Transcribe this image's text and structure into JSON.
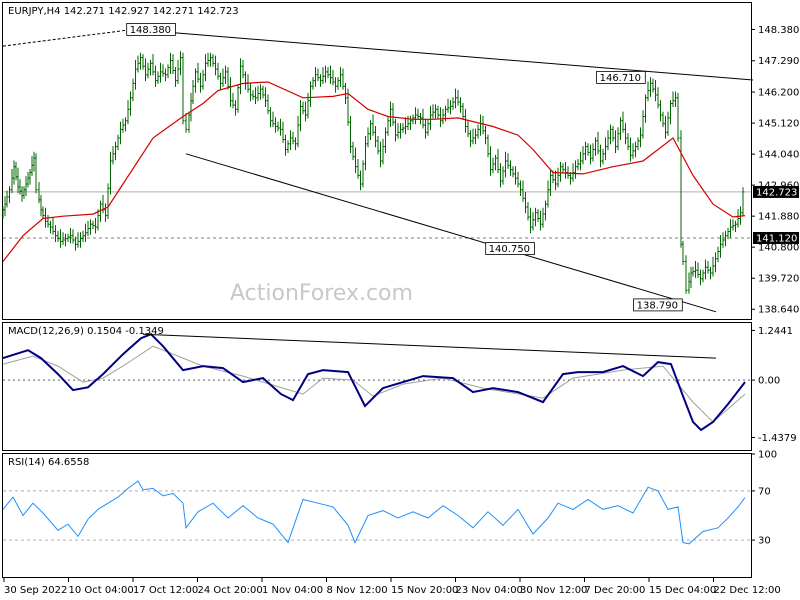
{
  "window": {
    "watermark": "ActionForex.com"
  },
  "chart_data": [
    {
      "type": "candlestick",
      "header": "EURJPY,H4  142.271 142.927 142.271 142.723",
      "symbol": "EURJPY",
      "timeframe": "H4",
      "ohlc_last": {
        "open": 142.271,
        "high": 142.927,
        "low": 142.271,
        "close": 142.723
      },
      "ylim": [
        138.3,
        149.3
      ],
      "y_ticks": [
        148.38,
        147.29,
        146.2,
        145.12,
        144.04,
        142.96,
        141.88,
        140.8,
        139.72,
        138.64
      ],
      "y_tick_labels": [
        "148.380",
        "147.290",
        "146.200",
        "145.120",
        "144.040",
        "142.960",
        "141.880",
        "140.800",
        "139.720",
        "138.640"
      ],
      "x_labels": [
        "30 Sep 2022",
        "10 Oct 04:00",
        "17 Oct 12:00",
        "24 Oct 20:00",
        "1 Nov 04:00",
        "8 Nov 12:00",
        "15 Nov 20:00",
        "23 Nov 04:00",
        "30 Nov 12:00",
        "7 Dec 20:00",
        "15 Dec 04:00",
        "22 Dec 12:00"
      ],
      "close_series": [
        [
          0,
          141.9
        ],
        [
          4,
          142.3
        ],
        [
          9,
          142.8
        ],
        [
          13,
          143.6
        ],
        [
          17,
          142.9
        ],
        [
          21,
          142.6
        ],
        [
          25,
          143.0
        ],
        [
          29,
          143.4
        ],
        [
          33,
          143.9
        ],
        [
          36,
          142.8
        ],
        [
          40,
          142.1
        ],
        [
          45,
          141.7
        ],
        [
          50,
          141.5
        ],
        [
          55,
          141.2
        ],
        [
          60,
          141.0
        ],
        [
          65,
          141.1
        ],
        [
          70,
          141.2
        ],
        [
          75,
          140.9
        ],
        [
          80,
          141.1
        ],
        [
          85,
          141.3
        ],
        [
          90,
          141.6
        ],
        [
          95,
          141.5
        ],
        [
          100,
          142.3
        ],
        [
          105,
          141.9
        ],
        [
          110,
          143.8
        ],
        [
          115,
          144.3
        ],
        [
          120,
          144.9
        ],
        [
          125,
          145.2
        ],
        [
          130,
          146.0
        ],
        [
          135,
          147.0
        ],
        [
          140,
          147.4
        ],
        [
          145,
          146.8
        ],
        [
          150,
          147.2
        ],
        [
          155,
          146.6
        ],
        [
          160,
          146.9
        ],
        [
          165,
          146.8
        ],
        [
          170,
          147.3
        ],
        [
          175,
          146.6
        ],
        [
          180,
          147.4
        ],
        [
          183,
          145.2
        ],
        [
          186,
          144.9
        ],
        [
          190,
          145.9
        ],
        [
          195,
          146.9
        ],
        [
          200,
          146.4
        ],
        [
          205,
          147.2
        ],
        [
          210,
          147.4
        ],
        [
          215,
          147.0
        ],
        [
          220,
          146.5
        ],
        [
          225,
          146.9
        ],
        [
          230,
          145.9
        ],
        [
          235,
          145.6
        ],
        [
          240,
          147.1
        ],
        [
          245,
          146.5
        ],
        [
          250,
          146.1
        ],
        [
          255,
          146.0
        ],
        [
          260,
          146.3
        ],
        [
          265,
          145.9
        ],
        [
          270,
          145.2
        ],
        [
          275,
          145.0
        ],
        [
          280,
          144.9
        ],
        [
          285,
          144.2
        ],
        [
          290,
          144.6
        ],
        [
          295,
          144.4
        ],
        [
          300,
          145.7
        ],
        [
          305,
          145.4
        ],
        [
          310,
          146.4
        ],
        [
          315,
          146.8
        ],
        [
          320,
          146.6
        ],
        [
          325,
          146.9
        ],
        [
          330,
          146.7
        ],
        [
          335,
          146.4
        ],
        [
          340,
          146.8
        ],
        [
          345,
          146.0
        ],
        [
          350,
          144.3
        ],
        [
          355,
          143.6
        ],
        [
          360,
          143.0
        ],
        [
          365,
          144.4
        ],
        [
          370,
          145.1
        ],
        [
          375,
          144.5
        ],
        [
          380,
          143.8
        ],
        [
          385,
          144.8
        ],
        [
          390,
          145.6
        ],
        [
          395,
          144.7
        ],
        [
          400,
          144.9
        ],
        [
          405,
          145.0
        ],
        [
          410,
          145.2
        ],
        [
          415,
          145.4
        ],
        [
          420,
          145.3
        ],
        [
          425,
          144.8
        ],
        [
          430,
          145.4
        ],
        [
          435,
          145.6
        ],
        [
          440,
          145.2
        ],
        [
          445,
          145.6
        ],
        [
          450,
          145.7
        ],
        [
          455,
          146.0
        ],
        [
          460,
          145.7
        ],
        [
          465,
          145.0
        ],
        [
          470,
          144.5
        ],
        [
          475,
          144.7
        ],
        [
          480,
          145.1
        ],
        [
          485,
          144.6
        ],
        [
          490,
          143.5
        ],
        [
          495,
          143.9
        ],
        [
          500,
          143.1
        ],
        [
          505,
          143.8
        ],
        [
          510,
          143.5
        ],
        [
          515,
          143.2
        ],
        [
          520,
          142.8
        ],
        [
          525,
          142.2
        ],
        [
          530,
          141.5
        ],
        [
          535,
          142.0
        ],
        [
          540,
          141.6
        ],
        [
          545,
          142.3
        ],
        [
          550,
          143.3
        ],
        [
          555,
          143.0
        ],
        [
          560,
          143.6
        ],
        [
          565,
          143.4
        ],
        [
          570,
          143.2
        ],
        [
          575,
          143.6
        ],
        [
          580,
          143.8
        ],
        [
          585,
          144.3
        ],
        [
          590,
          143.9
        ],
        [
          595,
          144.5
        ],
        [
          600,
          143.8
        ],
        [
          605,
          144.3
        ],
        [
          610,
          144.9
        ],
        [
          615,
          144.3
        ],
        [
          620,
          145.2
        ],
        [
          625,
          144.6
        ],
        [
          630,
          144.0
        ],
        [
          635,
          144.3
        ],
        [
          640,
          144.7
        ],
        [
          645,
          146.0
        ],
        [
          650,
          146.5
        ],
        [
          655,
          146.1
        ],
        [
          660,
          145.4
        ],
        [
          665,
          144.8
        ],
        [
          670,
          145.8
        ],
        [
          675,
          146.0
        ],
        [
          678,
          144.6
        ],
        [
          680,
          140.9
        ],
        [
          683,
          140.3
        ],
        [
          686,
          139.3
        ],
        [
          690,
          139.9
        ],
        [
          695,
          140.0
        ],
        [
          700,
          139.7
        ],
        [
          705,
          140.1
        ],
        [
          710,
          139.9
        ],
        [
          715,
          140.4
        ],
        [
          720,
          140.9
        ],
        [
          725,
          141.2
        ],
        [
          730,
          141.5
        ],
        [
          735,
          141.6
        ],
        [
          740,
          142.0
        ],
        [
          742,
          142.723
        ]
      ],
      "ma_series": [
        [
          0,
          140.3
        ],
        [
          20,
          141.2
        ],
        [
          40,
          141.8
        ],
        [
          60,
          141.88
        ],
        [
          90,
          141.95
        ],
        [
          105,
          142.2
        ],
        [
          120,
          143.0
        ],
        [
          150,
          144.6
        ],
        [
          180,
          145.35
        ],
        [
          200,
          145.8
        ],
        [
          215,
          146.25
        ],
        [
          240,
          146.5
        ],
        [
          265,
          146.55
        ],
        [
          300,
          146.0
        ],
        [
          330,
          146.05
        ],
        [
          345,
          146.15
        ],
        [
          365,
          145.6
        ],
        [
          385,
          145.35
        ],
        [
          410,
          145.25
        ],
        [
          430,
          145.25
        ],
        [
          455,
          145.3
        ],
        [
          490,
          145.0
        ],
        [
          515,
          144.7
        ],
        [
          530,
          144.2
        ],
        [
          550,
          143.4
        ],
        [
          580,
          143.35
        ],
        [
          610,
          143.6
        ],
        [
          640,
          143.8
        ],
        [
          670,
          144.6
        ],
        [
          690,
          143.3
        ],
        [
          710,
          142.3
        ],
        [
          730,
          141.85
        ],
        [
          742,
          141.9
        ]
      ],
      "trendlines": [
        {
          "points": [
            [
              0,
              147.8
            ],
            [
              130,
              148.38
            ],
            [
              750,
              146.62
            ]
          ],
          "dashed_until_index": 1
        },
        {
          "points": [
            [
              183,
              144.05
            ],
            [
              713,
              138.55
            ]
          ]
        }
      ],
      "horizontal_lines": [
        {
          "y": 142.723,
          "style": "solid",
          "label": "142.723"
        },
        {
          "y": 141.12,
          "style": "dashed",
          "label": "141.120"
        }
      ],
      "annotations": [
        {
          "text": "148.380",
          "x": 148,
          "y": 148.38
        },
        {
          "text": "146.710",
          "x": 618,
          "y": 146.71
        },
        {
          "text": "140.750",
          "x": 507,
          "y": 140.75
        },
        {
          "text": "138.790",
          "x": 655,
          "y": 138.79
        }
      ],
      "colors": {
        "price": "#006400",
        "ma": "#d40000",
        "trendline": "#000000",
        "price_box": "#000000"
      }
    },
    {
      "type": "line",
      "header": "MACD(12,26,9) 0.1504 -0.1349",
      "ylim": [
        -1.75,
        1.43
      ],
      "y_ticks": [
        1.2441,
        0.0,
        -1.4379
      ],
      "y_tick_labels": [
        "1.2441",
        "0.00",
        "-1.4379"
      ],
      "macd_series": [
        [
          0,
          0.55
        ],
        [
          25,
          0.75
        ],
        [
          38,
          0.55
        ],
        [
          55,
          0.15
        ],
        [
          70,
          -0.25
        ],
        [
          85,
          -0.18
        ],
        [
          100,
          0.15
        ],
        [
          120,
          0.65
        ],
        [
          138,
          1.05
        ],
        [
          148,
          1.15
        ],
        [
          160,
          0.85
        ],
        [
          180,
          0.25
        ],
        [
          200,
          0.35
        ],
        [
          220,
          0.3
        ],
        [
          240,
          -0.05
        ],
        [
          260,
          0.05
        ],
        [
          278,
          -0.35
        ],
        [
          290,
          -0.5
        ],
        [
          305,
          0.15
        ],
        [
          320,
          0.25
        ],
        [
          345,
          0.2
        ],
        [
          362,
          -0.65
        ],
        [
          380,
          -0.2
        ],
        [
          400,
          -0.05
        ],
        [
          420,
          0.1
        ],
        [
          450,
          0.05
        ],
        [
          470,
          -0.3
        ],
        [
          490,
          -0.2
        ],
        [
          515,
          -0.3
        ],
        [
          540,
          -0.55
        ],
        [
          560,
          0.15
        ],
        [
          575,
          0.2
        ],
        [
          600,
          0.2
        ],
        [
          620,
          0.35
        ],
        [
          640,
          0.1
        ],
        [
          655,
          0.45
        ],
        [
          668,
          0.4
        ],
        [
          680,
          -0.4
        ],
        [
          690,
          -1.05
        ],
        [
          698,
          -1.25
        ],
        [
          710,
          -1.05
        ],
        [
          725,
          -0.6
        ],
        [
          742,
          -0.05
        ]
      ],
      "signal_series": [
        [
          0,
          0.4
        ],
        [
          30,
          0.6
        ],
        [
          55,
          0.35
        ],
        [
          80,
          -0.05
        ],
        [
          100,
          0.05
        ],
        [
          120,
          0.35
        ],
        [
          150,
          0.85
        ],
        [
          175,
          0.6
        ],
        [
          200,
          0.35
        ],
        [
          240,
          0.1
        ],
        [
          280,
          -0.2
        ],
        [
          300,
          -0.35
        ],
        [
          320,
          0.05
        ],
        [
          350,
          0.0
        ],
        [
          370,
          -0.4
        ],
        [
          400,
          -0.1
        ],
        [
          440,
          0.05
        ],
        [
          480,
          -0.2
        ],
        [
          540,
          -0.45
        ],
        [
          570,
          0.05
        ],
        [
          620,
          0.25
        ],
        [
          660,
          0.35
        ],
        [
          690,
          -0.55
        ],
        [
          710,
          -1.05
        ],
        [
          742,
          -0.35
        ]
      ],
      "trendline": {
        "points": [
          [
            140,
            1.15
          ],
          [
            713,
            0.55
          ]
        ]
      },
      "colors": {
        "macd": "#000080",
        "signal": "#a0a0a0",
        "trendline": "#000000"
      }
    },
    {
      "type": "line",
      "header": "RSI(14) 64.6558",
      "ylim": [
        0,
        100
      ],
      "y_ticks": [
        100,
        70,
        30
      ],
      "y_tick_labels": [
        "100",
        "70",
        "30"
      ],
      "levels": [
        70,
        30
      ],
      "rsi_series": [
        [
          0,
          55
        ],
        [
          10,
          65
        ],
        [
          20,
          50
        ],
        [
          30,
          60
        ],
        [
          40,
          52
        ],
        [
          55,
          38
        ],
        [
          65,
          43
        ],
        [
          75,
          33
        ],
        [
          85,
          47
        ],
        [
          95,
          55
        ],
        [
          105,
          60
        ],
        [
          115,
          65
        ],
        [
          125,
          72
        ],
        [
          135,
          78
        ],
        [
          140,
          71
        ],
        [
          150,
          72
        ],
        [
          160,
          66
        ],
        [
          170,
          68
        ],
        [
          180,
          60
        ],
        [
          183,
          40
        ],
        [
          195,
          53
        ],
        [
          210,
          60
        ],
        [
          225,
          48
        ],
        [
          240,
          58
        ],
        [
          255,
          48
        ],
        [
          270,
          43
        ],
        [
          285,
          28
        ],
        [
          300,
          63
        ],
        [
          315,
          60
        ],
        [
          330,
          57
        ],
        [
          345,
          42
        ],
        [
          352,
          28
        ],
        [
          365,
          50
        ],
        [
          380,
          54
        ],
        [
          395,
          48
        ],
        [
          410,
          53
        ],
        [
          425,
          48
        ],
        [
          440,
          58
        ],
        [
          455,
          50
        ],
        [
          470,
          40
        ],
        [
          485,
          53
        ],
        [
          500,
          42
        ],
        [
          515,
          55
        ],
        [
          530,
          35
        ],
        [
          545,
          48
        ],
        [
          555,
          60
        ],
        [
          570,
          55
        ],
        [
          585,
          63
        ],
        [
          600,
          55
        ],
        [
          615,
          58
        ],
        [
          630,
          52
        ],
        [
          645,
          73
        ],
        [
          655,
          70
        ],
        [
          665,
          55
        ],
        [
          675,
          57
        ],
        [
          680,
          28
        ],
        [
          686,
          27
        ],
        [
          700,
          37
        ],
        [
          715,
          40
        ],
        [
          725,
          48
        ],
        [
          735,
          57
        ],
        [
          742,
          64.66
        ]
      ],
      "colors": {
        "rsi": "#1e90ff",
        "levels": "#808080"
      }
    }
  ]
}
